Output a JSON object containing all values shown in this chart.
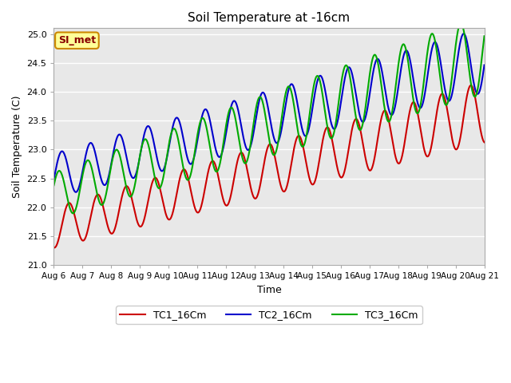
{
  "title": "Soil Temperature at -16cm",
  "xlabel": "Time",
  "ylabel": "Soil Temperature (C)",
  "ylim": [
    21.0,
    25.1
  ],
  "xlim": [
    0,
    360
  ],
  "bg_color": "#e8e8e8",
  "fig_color": "#ffffff",
  "grid_color": "#ffffff",
  "line_colors": [
    "#cc0000",
    "#0000cc",
    "#00aa00"
  ],
  "legend_labels": [
    "TC1_16Cm",
    "TC2_16Cm",
    "TC3_16Cm"
  ],
  "annotation_text": "SI_met",
  "annotation_bg": "#ffff99",
  "annotation_border": "#cc8800",
  "annotation_text_color": "#880000",
  "tick_labels": [
    "Aug 6",
    "Aug 7",
    "Aug 8",
    "Aug 9",
    "Aug 10",
    "Aug 11",
    "Aug 12",
    "Aug 13",
    "Aug 14",
    "Aug 15",
    "Aug 16",
    "Aug 17",
    "Aug 18",
    "Aug 19",
    "Aug 20",
    "Aug 21"
  ],
  "tick_positions": [
    0,
    24,
    48,
    72,
    96,
    120,
    144,
    168,
    192,
    216,
    240,
    264,
    288,
    312,
    336,
    360
  ],
  "yticks": [
    21.0,
    21.5,
    22.0,
    22.5,
    23.0,
    23.5,
    24.0,
    24.5,
    25.0
  ]
}
